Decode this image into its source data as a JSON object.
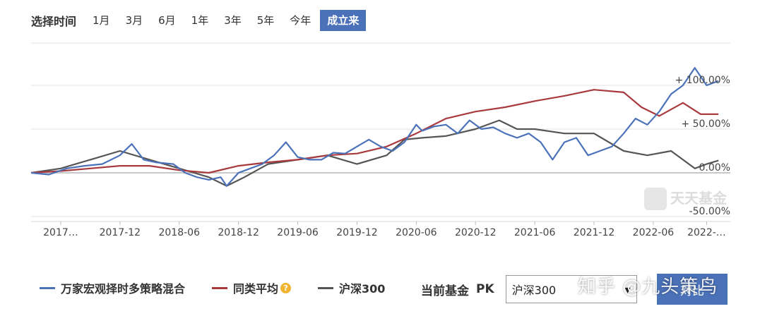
{
  "range_selector": {
    "title": "选择时间",
    "options": [
      "1月",
      "3月",
      "6月",
      "1年",
      "3年",
      "5年",
      "今年",
      "成立来"
    ],
    "active_index": 7
  },
  "logo_text": "天天基金",
  "legend": {
    "items": [
      {
        "label": "万家宏观择时多策略混合",
        "color": "#4b72b9"
      },
      {
        "label": "同类平均",
        "color": "#a8393d"
      },
      {
        "label": "沪深300",
        "color": "#555555"
      }
    ]
  },
  "pk": {
    "label": "当前基金",
    "pk_text": "PK",
    "select_value": "沪深300",
    "button_label": "对比"
  },
  "watermark": "知乎 @九头策鸟",
  "chart_data": {
    "type": "line",
    "title": "",
    "xlabel": "",
    "ylabel": "",
    "ylim": [
      -60,
      110
    ],
    "x_ticks": [
      "2017…",
      "2017-12",
      "2018-06",
      "2018-12",
      "2019-06",
      "2019-12",
      "2020-06",
      "2020-12",
      "2021-06",
      "2021-12",
      "2022-06",
      "2022-…"
    ],
    "x_tick_pos": [
      0.5,
      1.5,
      2.5,
      3.5,
      4.5,
      5.5,
      6.5,
      7.5,
      8.5,
      9.5,
      10.5,
      11.4
    ],
    "y_ticks": [
      {
        "value": 100,
        "label": "+ 100.00%"
      },
      {
        "value": 50,
        "label": "+ 50.00%"
      },
      {
        "value": 0,
        "label": "0.00%"
      },
      {
        "value": -50,
        "label": "-50.00%"
      }
    ],
    "grid": "horizontal",
    "legend_position": "bottom-left",
    "series": [
      {
        "name": "万家宏观择时多策略混合",
        "color": "#4b72b9",
        "x": [
          0,
          0.3,
          0.6,
          0.9,
          1.2,
          1.5,
          1.7,
          1.9,
          2.1,
          2.4,
          2.6,
          2.8,
          3.0,
          3.2,
          3.3,
          3.5,
          3.7,
          3.9,
          4.1,
          4.3,
          4.5,
          4.7,
          4.9,
          5.1,
          5.3,
          5.5,
          5.7,
          5.9,
          6.1,
          6.3,
          6.5,
          6.6,
          6.8,
          7.0,
          7.2,
          7.4,
          7.6,
          7.8,
          8.0,
          8.2,
          8.4,
          8.6,
          8.8,
          9.0,
          9.2,
          9.4,
          9.6,
          9.8,
          10.0,
          10.2,
          10.4,
          10.6,
          10.8,
          11.0,
          11.2,
          11.4,
          11.6
        ],
        "values": [
          0,
          -2,
          5,
          8,
          10,
          20,
          33,
          15,
          12,
          10,
          0,
          -5,
          -8,
          -5,
          -15,
          0,
          5,
          10,
          20,
          35,
          18,
          15,
          15,
          23,
          22,
          30,
          38,
          30,
          25,
          35,
          55,
          48,
          53,
          55,
          45,
          60,
          50,
          52,
          45,
          40,
          45,
          35,
          15,
          35,
          40,
          20,
          25,
          30,
          45,
          62,
          55,
          70,
          90,
          100,
          120,
          100,
          105
        ]
      },
      {
        "name": "同类平均",
        "color": "#a8393d",
        "x": [
          0,
          0.5,
          1.0,
          1.5,
          2.0,
          2.5,
          3.0,
          3.5,
          4.0,
          4.5,
          5.0,
          5.5,
          6.0,
          6.5,
          7.0,
          7.5,
          8.0,
          8.5,
          9.0,
          9.5,
          10.0,
          10.3,
          10.6,
          11.0,
          11.3,
          11.6
        ],
        "values": [
          0,
          2,
          5,
          8,
          8,
          3,
          0,
          8,
          12,
          15,
          20,
          22,
          30,
          45,
          62,
          70,
          75,
          82,
          88,
          95,
          92,
          75,
          65,
          80,
          67,
          67
        ]
      },
      {
        "name": "沪深300",
        "color": "#555555",
        "x": [
          0,
          0.5,
          1.0,
          1.5,
          2.0,
          2.5,
          3.0,
          3.3,
          3.6,
          4.0,
          4.5,
          5.0,
          5.5,
          6.0,
          6.3,
          6.6,
          7.0,
          7.5,
          7.9,
          8.2,
          8.5,
          9.0,
          9.5,
          10.0,
          10.4,
          10.8,
          11.2,
          11.4,
          11.6
        ],
        "values": [
          0,
          5,
          15,
          25,
          15,
          5,
          -5,
          -15,
          -5,
          10,
          15,
          20,
          10,
          20,
          38,
          40,
          42,
          50,
          60,
          50,
          50,
          45,
          45,
          25,
          20,
          25,
          5,
          10,
          14
        ]
      }
    ]
  }
}
